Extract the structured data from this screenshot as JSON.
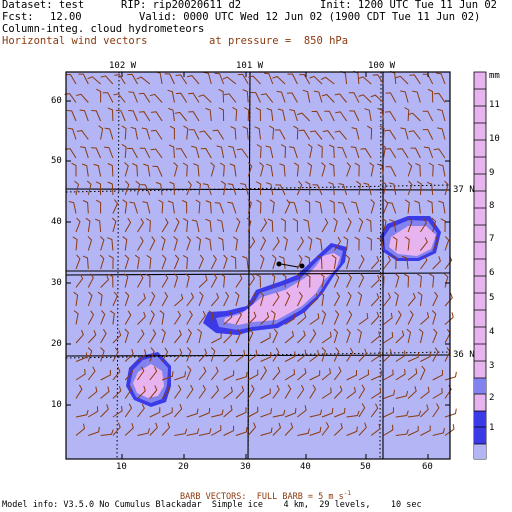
{
  "header": {
    "dataset_label": "Dataset: test",
    "rip_label": "RIP: rip20020611 d2",
    "init_label": "Init: 1200 UTC Tue 11 Jun 02",
    "fcst_label": "Fcst:",
    "fcst_value": "12.00",
    "valid_label": "Valid: 0000 UTC Wed 12 Jun 02 (1900 CDT Tue 11 Jun 02)",
    "field_1": "Column-integ. cloud hydrometeors",
    "field_2": "Horizontal wind vectors",
    "pressure_label": "at pressure =  850 hPa"
  },
  "map": {
    "longitude_labels": [
      "102 W",
      "101 W",
      "100 W"
    ],
    "latitude_labels": [
      "37 N",
      "36 N"
    ],
    "x_ticks": [
      "10",
      "20",
      "30",
      "40",
      "50",
      "60"
    ],
    "y_ticks": [
      "60",
      "50",
      "40",
      "30",
      "20",
      "10"
    ],
    "colors": {
      "background": "#b3b5f5",
      "level_1": "#3a3ae8",
      "level_2": "#8383f0",
      "level_3": "#e8b4f0",
      "wind_barb": "#8b3a0f"
    }
  },
  "colorbar": {
    "unit": "mm",
    "labels": [
      "11",
      "10",
      "9",
      "8",
      "7",
      "6",
      "5",
      "4",
      "3",
      "2",
      "1"
    ]
  },
  "footer": {
    "barb_note": "BARB VECTORS:  FULL BARB = 5 m s",
    "barb_superscript": "-1",
    "model_info": "Model info: V3.5.0 No Cumulus Blackadar  Simple ice    4 km,  29 levels,    10 sec"
  }
}
